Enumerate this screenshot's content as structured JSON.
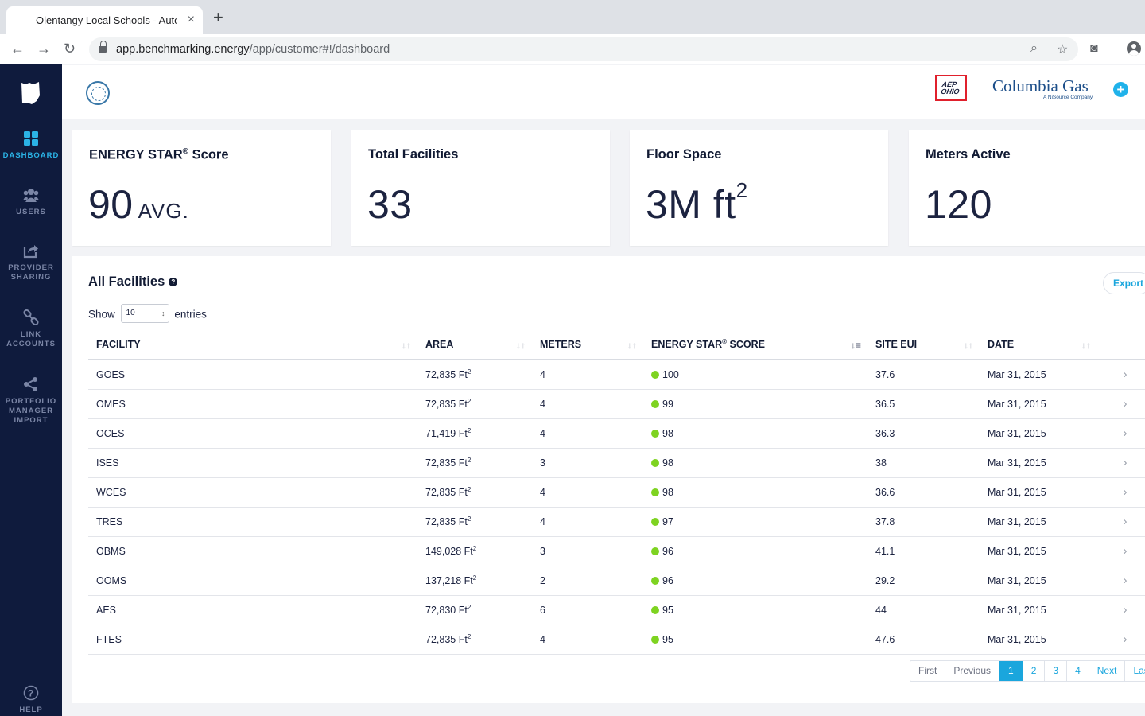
{
  "browser": {
    "tab_title": "Olentangy Local Schools - Automatic",
    "url_host": "app.benchmarking.energy",
    "url_path": "/app/customer#!/dashboard"
  },
  "sidebar": {
    "items": [
      {
        "label": "DASHBOARD",
        "icon": "grid-icon",
        "active": true
      },
      {
        "label": "USERS",
        "icon": "users-icon",
        "active": false
      },
      {
        "label": "PROVIDER SHARING",
        "icon": "share-icon",
        "active": false
      },
      {
        "label": "LINK ACCOUNTS",
        "icon": "link-icon",
        "active": false
      },
      {
        "label": "PORTFOLIO MANAGER IMPORT",
        "icon": "network-icon",
        "active": false
      }
    ],
    "help_label": "HELP"
  },
  "header": {
    "partner_1": "AEP OHIO",
    "partner_2": "Columbia Gas",
    "partner_2_sub": "A NiSource Company"
  },
  "stats": {
    "energy_star": {
      "title": "ENERGY STAR",
      "title_suffix": "Score",
      "value": "90",
      "unit": "AVG."
    },
    "facilities": {
      "title": "Total Facilities",
      "value": "33"
    },
    "floor_space": {
      "title": "Floor Space",
      "value": "3M ft",
      "exp": "2"
    },
    "meters": {
      "title": "Meters Active",
      "value": "120"
    }
  },
  "facilities": {
    "title": "All Facilities",
    "export_label": "Export",
    "show_label": "Show",
    "entries_label": "entries",
    "page_size": "10",
    "columns": [
      "FACILITY",
      "AREA",
      "METERS",
      "ENERGY STAR",
      "SCORE",
      "SITE EUI",
      "DATE"
    ],
    "rows": [
      {
        "facility": "GOES",
        "area": "72,835 Ft",
        "meters": "4",
        "score": "100",
        "eui": "37.6",
        "date": "Mar 31, 2015"
      },
      {
        "facility": "OMES",
        "area": "72,835 Ft",
        "meters": "4",
        "score": "99",
        "eui": "36.5",
        "date": "Mar 31, 2015"
      },
      {
        "facility": "OCES",
        "area": "71,419 Ft",
        "meters": "4",
        "score": "98",
        "eui": "36.3",
        "date": "Mar 31, 2015"
      },
      {
        "facility": "ISES",
        "area": "72,835 Ft",
        "meters": "3",
        "score": "98",
        "eui": "38",
        "date": "Mar 31, 2015"
      },
      {
        "facility": "WCES",
        "area": "72,835 Ft",
        "meters": "4",
        "score": "98",
        "eui": "36.6",
        "date": "Mar 31, 2015"
      },
      {
        "facility": "TRES",
        "area": "72,835 Ft",
        "meters": "4",
        "score": "97",
        "eui": "37.8",
        "date": "Mar 31, 2015"
      },
      {
        "facility": "OBMS",
        "area": "149,028 Ft",
        "meters": "3",
        "score": "96",
        "eui": "41.1",
        "date": "Mar 31, 2015"
      },
      {
        "facility": "OOMS",
        "area": "137,218 Ft",
        "meters": "2",
        "score": "96",
        "eui": "29.2",
        "date": "Mar 31, 2015"
      },
      {
        "facility": "AES",
        "area": "72,830 Ft",
        "meters": "6",
        "score": "95",
        "eui": "44",
        "date": "Mar 31, 2015"
      },
      {
        "facility": "FTES",
        "area": "72,835 Ft",
        "meters": "4",
        "score": "95",
        "eui": "47.6",
        "date": "Mar 31, 2015"
      }
    ],
    "pagination": [
      "First",
      "Previous",
      "1",
      "2",
      "3",
      "4",
      "Next",
      "Last"
    ],
    "current_page": "1"
  },
  "colors": {
    "sidebar_bg": "#0f1b3d",
    "accent": "#1aa6dd",
    "score_good": "#7ed321"
  }
}
